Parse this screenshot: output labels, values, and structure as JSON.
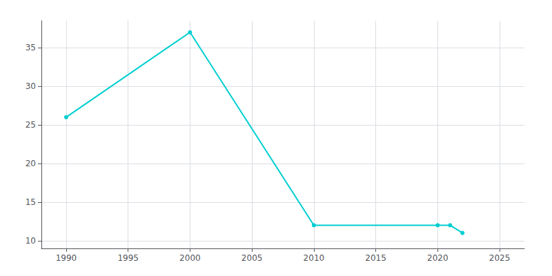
{
  "chart_data": {
    "type": "line",
    "x": [
      1990,
      2000,
      2010,
      2020,
      2021,
      2022
    ],
    "values": [
      26,
      37,
      12,
      12,
      12,
      11
    ],
    "color": "#00CED1",
    "marker": "circle",
    "xlim": [
      1988,
      2027
    ],
    "ylim": [
      9.0,
      38.5
    ],
    "xticks": [
      1990,
      1995,
      2000,
      2005,
      2010,
      2015,
      2020,
      2025
    ],
    "yticks": [
      10,
      15,
      20,
      25,
      30,
      35
    ],
    "grid": true
  }
}
